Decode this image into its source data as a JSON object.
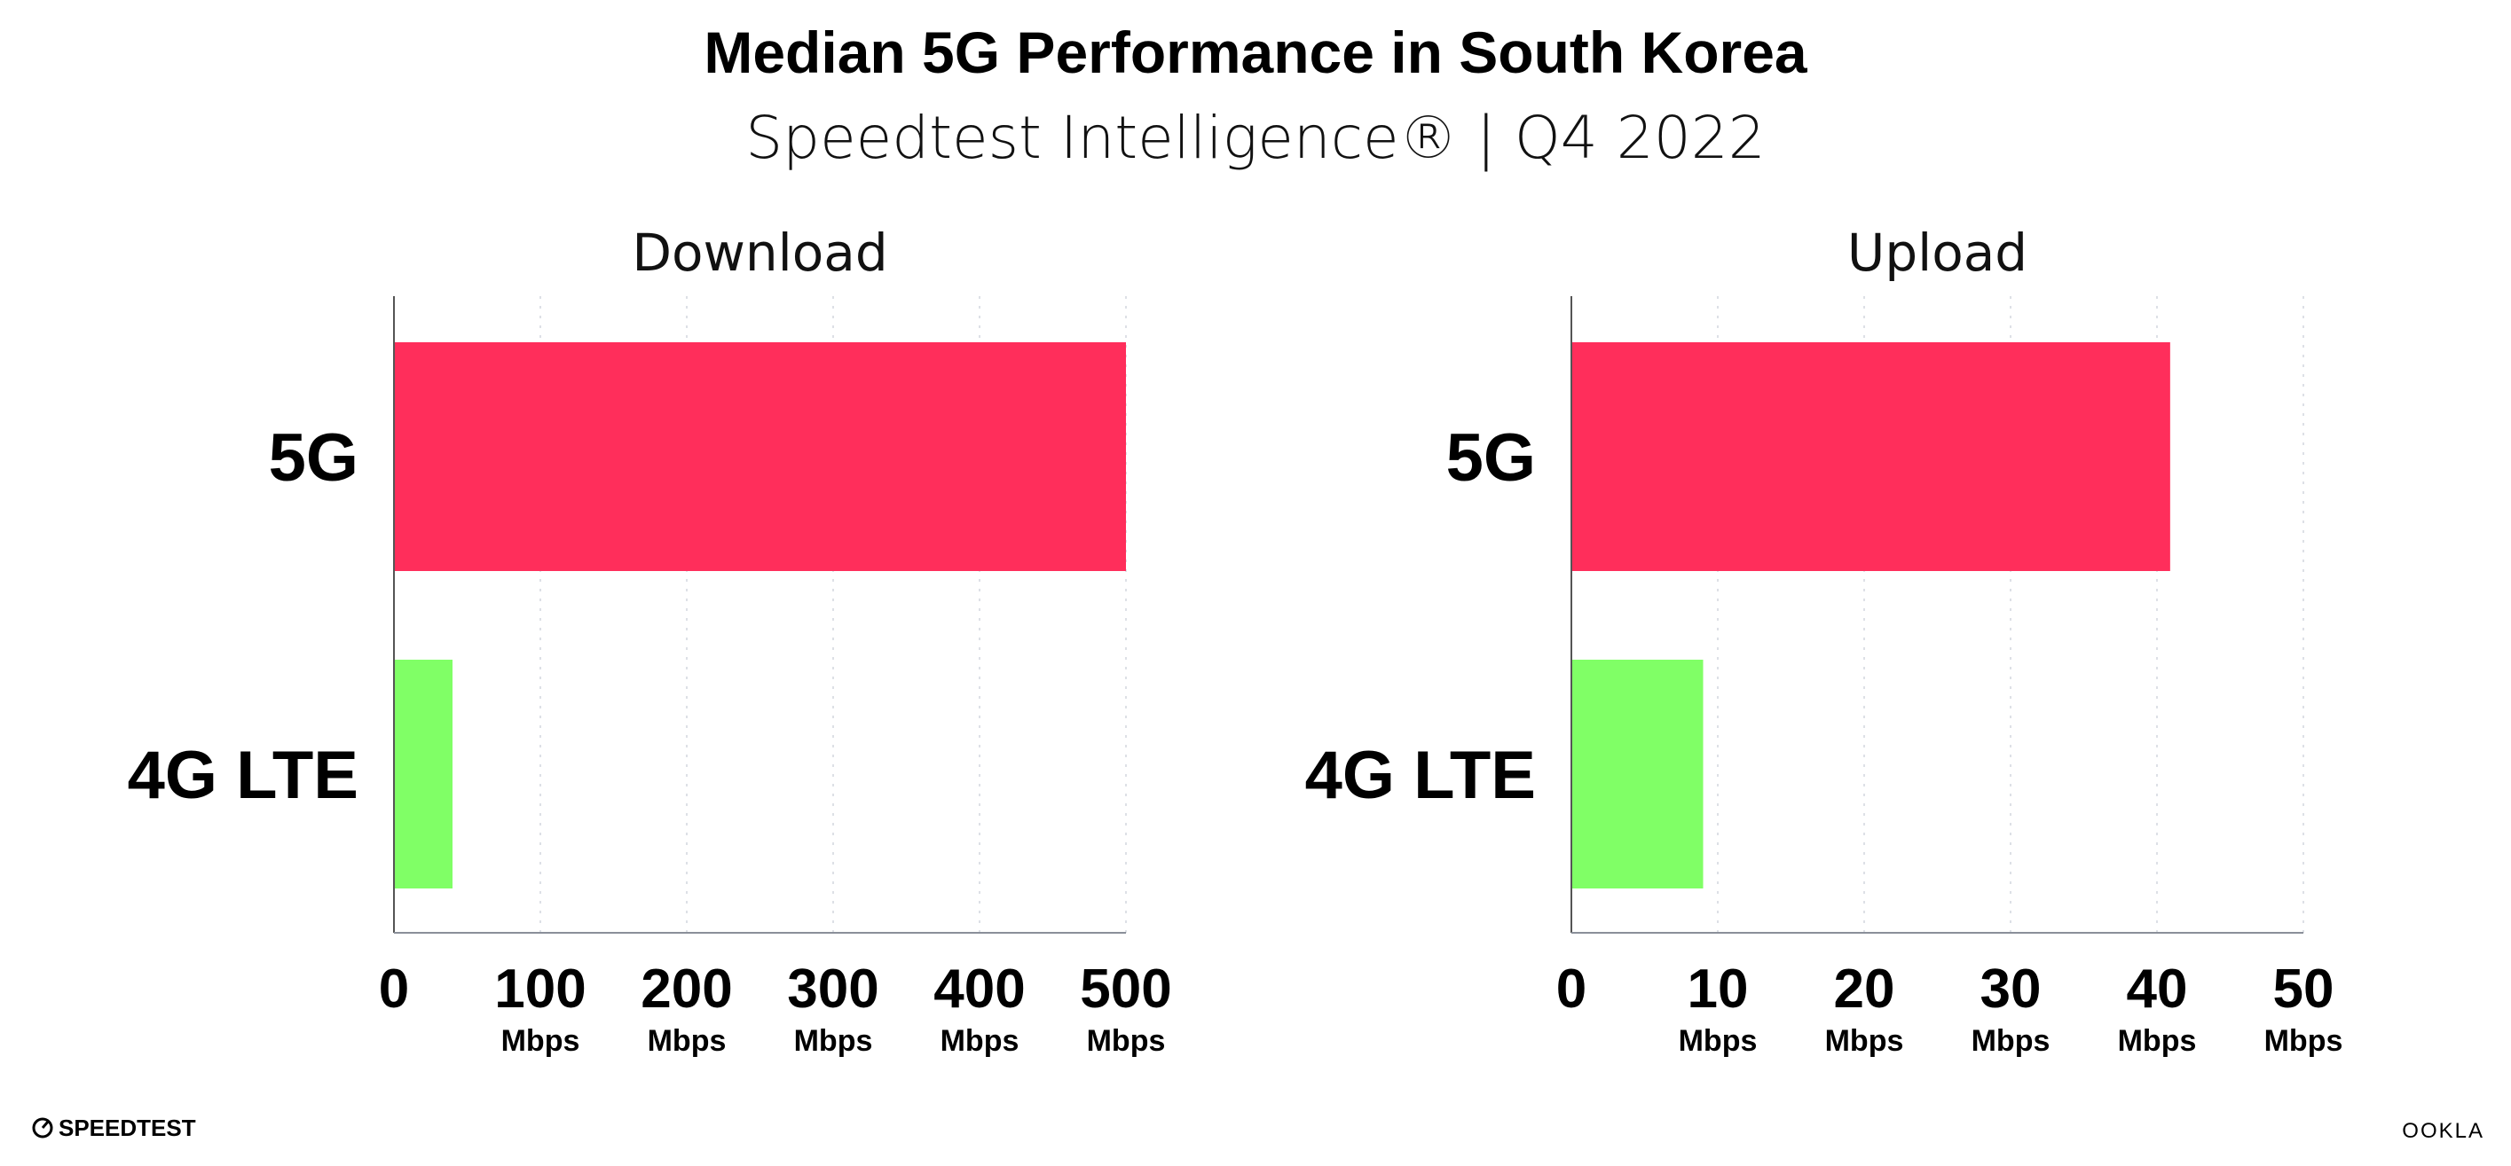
{
  "title": "Median 5G Performance in South Korea",
  "subtitle": "Speedtest Intelligence® | Q4 2022",
  "footer": {
    "left_logo": "SPEEDTEST",
    "right_logo": "OOKLA"
  },
  "chart_data": [
    {
      "type": "bar",
      "orientation": "horizontal",
      "title": "Download",
      "categories": [
        "5G",
        "4G LTE"
      ],
      "values": [
        500,
        40
      ],
      "colors": [
        "#ff2e5b",
        "#80ff66"
      ],
      "xlim": [
        0,
        500
      ],
      "xticks": [
        "0",
        "100",
        "200",
        "300",
        "400",
        "500"
      ],
      "tick_unit": "Mbps",
      "grid": true
    },
    {
      "type": "bar",
      "orientation": "horizontal",
      "title": "Upload",
      "categories": [
        "5G",
        "4G LTE"
      ],
      "values": [
        40.9,
        9.0
      ],
      "colors": [
        "#ff2e5b",
        "#80ff66"
      ],
      "xlim": [
        0,
        50
      ],
      "xticks": [
        "0",
        "10",
        "20",
        "30",
        "40",
        "50"
      ],
      "tick_unit": "Mbps",
      "grid": true
    }
  ]
}
